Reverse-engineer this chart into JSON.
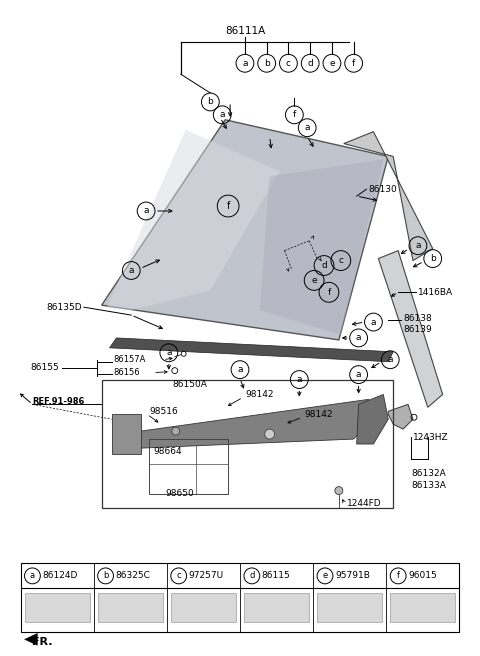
{
  "bg_color": "#ffffff",
  "legend_items": [
    {
      "letter": "a",
      "code": "86124D"
    },
    {
      "letter": "b",
      "code": "86325C"
    },
    {
      "letter": "c",
      "code": "97257U"
    },
    {
      "letter": "d",
      "code": "86115"
    },
    {
      "letter": "e",
      "code": "95791B"
    },
    {
      "letter": "f",
      "code": "96015"
    }
  ],
  "top_label": "86111A",
  "top_circles": [
    "a",
    "b",
    "c",
    "d",
    "e",
    "f"
  ],
  "windshield_color": "#b8bec8",
  "windshield_hl": "#d0d4dc",
  "strip_color": "#c8cacc",
  "wiper_color": "#909090",
  "wiper_dark": "#606060"
}
